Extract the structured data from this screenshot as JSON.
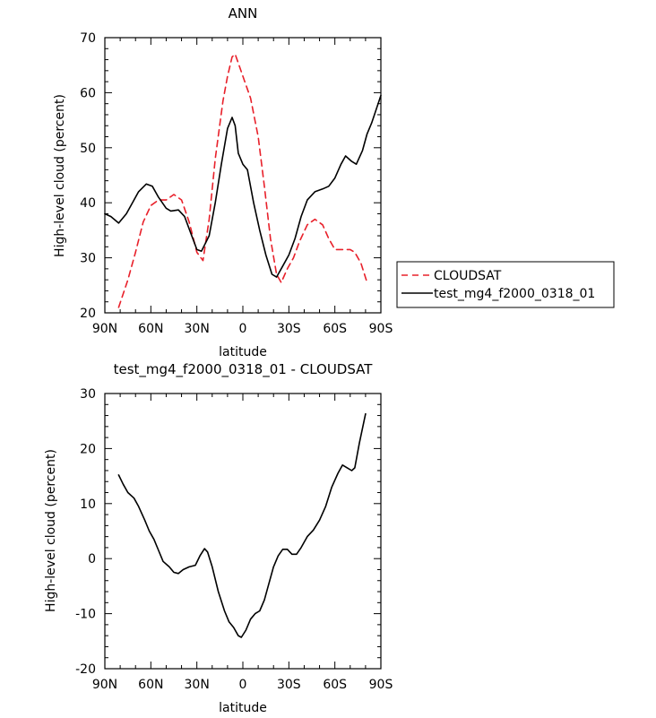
{
  "colors": {
    "cloudsat": "#e8202a",
    "model": "#000000"
  },
  "chart_data": [
    {
      "type": "line",
      "title": "ANN",
      "xlabel": "latitude",
      "ylabel": "High-level cloud (percent)",
      "xlim": [
        90,
        -90
      ],
      "ylim": [
        20,
        70
      ],
      "xticks": [
        90,
        60,
        30,
        0,
        -30,
        -60,
        -90
      ],
      "xtick_labels": [
        "90N",
        "60N",
        "30N",
        "0",
        "30S",
        "60S",
        "90S"
      ],
      "yticks": [
        20,
        30,
        40,
        50,
        60,
        70
      ],
      "ytick_labels": [
        "20",
        "30",
        "40",
        "50",
        "60",
        "70"
      ],
      "legend_position": "outside-right",
      "series": [
        {
          "name": "CLOUDSAT",
          "style": "dashed",
          "color": "#e8202a",
          "points": [
            [
              81,
              21.0
            ],
            [
              75,
              26.0
            ],
            [
              70,
              31.0
            ],
            [
              65,
              36.5
            ],
            [
              60,
              39.5
            ],
            [
              55,
              40.5
            ],
            [
              50,
              40.5
            ],
            [
              45,
              41.5
            ],
            [
              40,
              40.5
            ],
            [
              35,
              36.5
            ],
            [
              30,
              31.0
            ],
            [
              26,
              29.5
            ],
            [
              22,
              37.0
            ],
            [
              18,
              48.0
            ],
            [
              13,
              58.5
            ],
            [
              10,
              63.0
            ],
            [
              7,
              66.5
            ],
            [
              5,
              67.0
            ],
            [
              0,
              63.0
            ],
            [
              -5,
              59.0
            ],
            [
              -10,
              52.0
            ],
            [
              -14,
              43.0
            ],
            [
              -18,
              33.5
            ],
            [
              -22,
              27.0
            ],
            [
              -25,
              25.5
            ],
            [
              -29,
              28.0
            ],
            [
              -33,
              30.0
            ],
            [
              -37,
              33.0
            ],
            [
              -42,
              36.0
            ],
            [
              -47,
              37.0
            ],
            [
              -52,
              36.0
            ],
            [
              -56,
              33.5
            ],
            [
              -60,
              31.5
            ],
            [
              -65,
              31.5
            ],
            [
              -70,
              31.5
            ],
            [
              -73,
              31.0
            ],
            [
              -77,
              29.0
            ],
            [
              -81,
              25.5
            ]
          ]
        },
        {
          "name": "test_mg4_f2000_0318_01",
          "style": "solid",
          "color": "#000000",
          "points": [
            [
              90,
              38.0
            ],
            [
              86,
              37.5
            ],
            [
              81,
              36.3
            ],
            [
              76,
              38.0
            ],
            [
              72,
              40.0
            ],
            [
              68,
              42.0
            ],
            [
              63,
              43.4
            ],
            [
              59,
              43.0
            ],
            [
              55,
              41.0
            ],
            [
              50,
              39.0
            ],
            [
              47,
              38.5
            ],
            [
              42,
              38.7
            ],
            [
              38,
              37.5
            ],
            [
              34,
              34.5
            ],
            [
              30,
              31.5
            ],
            [
              27,
              31.2
            ],
            [
              22,
              34.0
            ],
            [
              18,
              40.0
            ],
            [
              14,
              47.0
            ],
            [
              10,
              53.5
            ],
            [
              7,
              55.5
            ],
            [
              5,
              54.0
            ],
            [
              3,
              49.0
            ],
            [
              0,
              47.0
            ],
            [
              -3,
              46.0
            ],
            [
              -7,
              40.0
            ],
            [
              -11,
              35.0
            ],
            [
              -15,
              30.5
            ],
            [
              -19,
              27.0
            ],
            [
              -22,
              26.5
            ],
            [
              -26,
              28.5
            ],
            [
              -30,
              30.5
            ],
            [
              -34,
              33.5
            ],
            [
              -38,
              37.5
            ],
            [
              -42,
              40.5
            ],
            [
              -47,
              42.0
            ],
            [
              -52,
              42.5
            ],
            [
              -56,
              43.0
            ],
            [
              -60,
              44.5
            ],
            [
              -64,
              47.0
            ],
            [
              -67,
              48.5
            ],
            [
              -71,
              47.5
            ],
            [
              -74,
              47.0
            ],
            [
              -78,
              49.5
            ],
            [
              -81,
              52.5
            ],
            [
              -84,
              54.5
            ],
            [
              -87,
              57.0
            ],
            [
              -90,
              59.5
            ]
          ]
        }
      ]
    },
    {
      "type": "line",
      "title": "test_mg4_f2000_0318_01  -  CLOUDSAT",
      "xlabel": "latitude",
      "ylabel": "High-level cloud (percent)",
      "xlim": [
        90,
        -90
      ],
      "ylim": [
        -20,
        30
      ],
      "xticks": [
        90,
        60,
        30,
        0,
        -30,
        -60,
        -90
      ],
      "xtick_labels": [
        "90N",
        "60N",
        "30N",
        "0",
        "30S",
        "60S",
        "90S"
      ],
      "yticks": [
        -20,
        -10,
        0,
        10,
        20,
        30
      ],
      "ytick_labels": [
        "-20",
        "-10",
        "0",
        "10",
        "20",
        "30"
      ],
      "series": [
        {
          "style": "solid",
          "color": "#000000",
          "points": [
            [
              81,
              15.2
            ],
            [
              78,
              13.5
            ],
            [
              75,
              12.0
            ],
            [
              71,
              11.0
            ],
            [
              68,
              9.5
            ],
            [
              64,
              7.0
            ],
            [
              61,
              5.0
            ],
            [
              58,
              3.5
            ],
            [
              55,
              1.5
            ],
            [
              52,
              -0.5
            ],
            [
              48,
              -1.5
            ],
            [
              45,
              -2.5
            ],
            [
              42,
              -2.7
            ],
            [
              39,
              -2.0
            ],
            [
              35,
              -1.5
            ],
            [
              31,
              -1.2
            ],
            [
              28,
              0.5
            ],
            [
              25,
              1.8
            ],
            [
              23,
              1.2
            ],
            [
              20,
              -1.5
            ],
            [
              16,
              -6.0
            ],
            [
              12,
              -9.5
            ],
            [
              9,
              -11.5
            ],
            [
              6,
              -12.5
            ],
            [
              3,
              -14.0
            ],
            [
              1,
              -14.3
            ],
            [
              -2,
              -13.0
            ],
            [
              -5,
              -11.0
            ],
            [
              -8,
              -10.0
            ],
            [
              -11,
              -9.5
            ],
            [
              -14,
              -7.5
            ],
            [
              -17,
              -4.5
            ],
            [
              -20,
              -1.5
            ],
            [
              -23,
              0.5
            ],
            [
              -26,
              1.7
            ],
            [
              -29,
              1.7
            ],
            [
              -32,
              0.8
            ],
            [
              -35,
              0.8
            ],
            [
              -38,
              2.0
            ],
            [
              -42,
              4.0
            ],
            [
              -46,
              5.2
            ],
            [
              -50,
              7.0
            ],
            [
              -54,
              9.5
            ],
            [
              -58,
              13.0
            ],
            [
              -62,
              15.5
            ],
            [
              -65,
              17.0
            ],
            [
              -68,
              16.5
            ],
            [
              -71,
              16.0
            ],
            [
              -73,
              16.5
            ],
            [
              -76,
              21.0
            ],
            [
              -79,
              25.0
            ],
            [
              -80,
              26.3
            ]
          ]
        }
      ]
    }
  ]
}
